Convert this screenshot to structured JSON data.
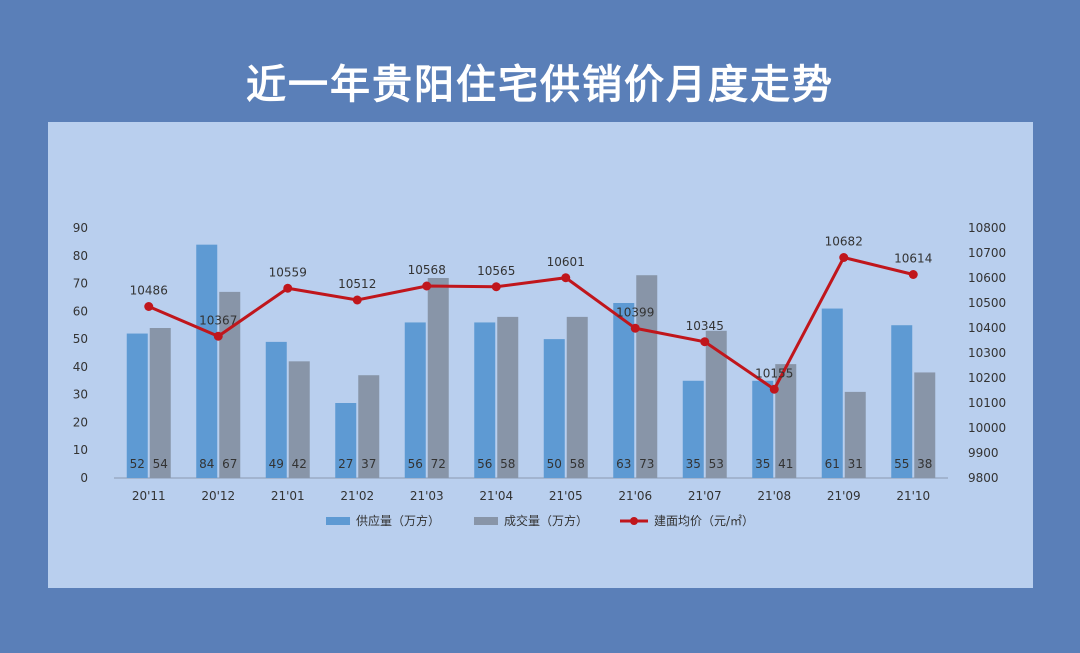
{
  "title": "近一年贵阳住宅供销价月度走势",
  "colors": {
    "background": "#5a7fb8",
    "panel": "#b9cfee",
    "supply": "#5e9ad3",
    "sales": "#8895a8",
    "price": "#c0161c"
  },
  "chart_data": {
    "type": "bar",
    "categories": [
      "20'11",
      "20'12",
      "21'01",
      "21'02",
      "21'03",
      "21'04",
      "21'05",
      "21'06",
      "21'07",
      "21'08",
      "21'09",
      "21'10"
    ],
    "series": [
      {
        "name": "供应量（万方）",
        "type": "bar",
        "axis": "left",
        "values": [
          52,
          84,
          49,
          27,
          56,
          56,
          50,
          63,
          35,
          35,
          61,
          55
        ]
      },
      {
        "name": "成交量（万方）",
        "type": "bar",
        "axis": "left",
        "values": [
          54,
          67,
          42,
          37,
          72,
          58,
          58,
          73,
          53,
          41,
          31,
          38
        ]
      },
      {
        "name": "建面均价（元/㎡）",
        "type": "line",
        "axis": "right",
        "values": [
          10486,
          10367,
          10559,
          10512,
          10568,
          10565,
          10601,
          10399,
          10345,
          10155,
          10682,
          10614
        ]
      }
    ],
    "ylim_left": [
      0,
      90
    ],
    "yticks_left": [
      0,
      10,
      20,
      30,
      40,
      50,
      60,
      70,
      80,
      90
    ],
    "ylim_right": [
      9800,
      10800
    ],
    "yticks_right": [
      9800,
      9900,
      10000,
      10100,
      10200,
      10300,
      10400,
      10500,
      10600,
      10700,
      10800
    ],
    "legend_position": "bottom",
    "grid": false
  }
}
